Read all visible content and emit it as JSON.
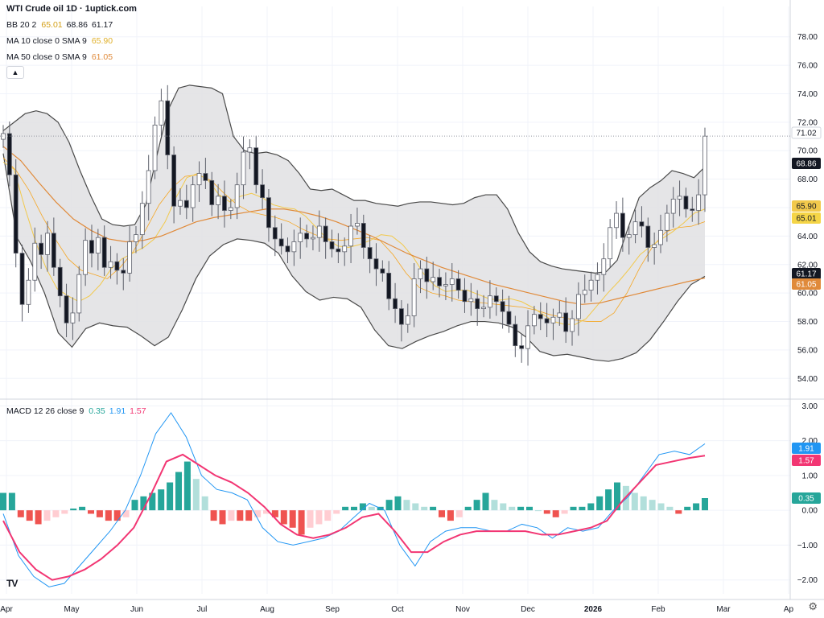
{
  "header": {
    "title": "WTI Crude oil  1D · 1uptick.com"
  },
  "legend": {
    "bb": {
      "label": "BB 20 2",
      "basis": "65.01",
      "upper": "68.86",
      "lower": "61.17"
    },
    "ma10": {
      "label": "MA 10 close 0 SMA 9",
      "value": "65.90"
    },
    "ma50": {
      "label": "MA 50 close 0 SMA 9",
      "value": "61.05"
    },
    "macd": {
      "label": "MACD 12 26 close 9",
      "hist": "0.35",
      "macd": "1.91",
      "signal": "1.57"
    }
  },
  "colors": {
    "up": "#26a69a",
    "down": "#131722",
    "bb_fill": "#e0e1e3",
    "bb_line": "#4a4a4a",
    "ma10": "#f2c94c",
    "ma50": "#e08a3a",
    "macd_line": "#2196f3",
    "signal_line": "#f23673",
    "hist_up": "#26a69a",
    "hist_up_light": "#b2dfdb",
    "hist_down": "#ef5350",
    "hist_down_light": "#ffcdd2"
  },
  "icons": {
    "collapse": "chevron-up-icon",
    "logo": "tradingview-logo-icon",
    "settings": "gear-icon"
  },
  "axis_labels": {
    "x": [
      "Apr",
      "May",
      "Jun",
      "Jul",
      "Aug",
      "Sep",
      "Oct",
      "Nov",
      "Dec",
      "2026",
      "Feb",
      "Mar",
      "Ap"
    ],
    "price": [
      "78.00",
      "76.00",
      "74.00",
      "72.00",
      "70.00",
      "68.00",
      "66.00",
      "64.00",
      "62.00",
      "60.00",
      "58.00",
      "56.00",
      "54.00"
    ],
    "macd": [
      "3.00",
      "2.00",
      "1.00",
      "0.00",
      "-1.00",
      "-2.00"
    ]
  },
  "badges": {
    "price": [
      {
        "value": "71.02",
        "bg": "#ffffff",
        "fg": "#131722"
      },
      {
        "value": "68.86",
        "bg": "#131722",
        "fg": "#ffffff"
      },
      {
        "value": "65.90",
        "bg": "#f2c94c",
        "fg": "#131722"
      },
      {
        "value": "65.01",
        "bg": "#f5d547",
        "fg": "#131722"
      },
      {
        "value": "61.17",
        "bg": "#131722",
        "fg": "#ffffff"
      },
      {
        "value": "61.05",
        "bg": "#e08a3a",
        "fg": "#ffffff"
      }
    ],
    "macd": [
      {
        "value": "1.91",
        "bg": "#2196f3",
        "fg": "#ffffff"
      },
      {
        "value": "1.57",
        "bg": "#f23673",
        "fg": "#ffffff"
      },
      {
        "value": "0.35",
        "bg": "#26a69a",
        "fg": "#ffffff"
      }
    ]
  },
  "chart_data": {
    "type": "line",
    "title": "WTI Crude oil  1D · 1uptick.com",
    "price_range": [
      53,
      79
    ],
    "macd_range": [
      -2.4,
      3.1
    ],
    "last_close": 71.02,
    "price_series": [
      {
        "name": "close",
        "values": [
          71.2,
          68.3,
          62.8,
          59.2,
          60.9,
          63.5,
          62.7,
          64.2,
          61.8,
          59.8,
          57.9,
          58.6,
          61.3,
          63.7,
          62.8,
          63.9,
          61.8,
          62.2,
          61.6,
          61.4,
          63.6,
          64.1,
          66.3,
          68.6,
          71.8,
          73.5,
          69.7,
          66.1,
          66.5,
          66.0,
          67.6,
          68.4,
          67.9,
          66.2,
          66.8,
          65.8,
          66.0,
          67.6,
          69.9,
          70.2,
          67.6,
          66.7,
          64.6,
          63.8,
          63.3,
          62.9,
          63.6,
          64.2,
          63.8,
          63.9,
          64.7,
          63.6,
          63.1,
          62.9,
          63.3,
          64.7,
          64.9,
          63.2,
          62.4,
          61.7,
          61.4,
          59.6,
          58.9,
          57.8,
          58.4,
          61.0,
          61.7,
          60.8,
          61.1,
          60.5,
          60.6,
          61.0,
          60.2,
          59.4,
          59.6,
          58.9,
          59.0,
          59.8,
          59.4,
          58.7,
          57.8,
          56.3,
          56.1,
          57.7,
          58.5,
          58.2,
          57.9,
          58.3,
          58.6,
          57.3,
          58.2,
          59.9,
          60.2,
          60.9,
          61.3,
          62.4,
          64.6,
          65.6,
          63.9,
          64.1,
          65.0,
          64.7,
          63.2,
          63.4,
          64.4,
          65.6,
          66.6,
          66.8,
          65.9,
          65.8,
          66.9,
          71.02
        ]
      },
      {
        "name": "bb_upper",
        "values": [
          71.4,
          72.0,
          72.6,
          72.8,
          72.6,
          72.0,
          70.6,
          68.6,
          66.8,
          65.2,
          64.8,
          64.7,
          64.8,
          66.2,
          69.6,
          72.8,
          74.4,
          74.6,
          74.5,
          74.4,
          74.0,
          71.0,
          70.0,
          69.8,
          69.9,
          69.7,
          69.3,
          68.4,
          67.3,
          67.2,
          67.3,
          66.9,
          66.5,
          66.5,
          66.3,
          66.2,
          66.1,
          66.3,
          66.4,
          66.4,
          66.3,
          66.2,
          66.3,
          66.7,
          66.9,
          66.9,
          65.9,
          64.2,
          62.9,
          62.2,
          61.9,
          61.7,
          61.6,
          61.5,
          61.4,
          61.5,
          62.3,
          64.6,
          66.7,
          67.4,
          67.9,
          68.6,
          68.4,
          68.1,
          68.86
        ]
      },
      {
        "name": "bb_basis",
        "values": [
          69.5,
          68.6,
          67.2,
          65.4,
          63.8,
          62.4,
          61.6,
          61.3,
          61.0,
          61.8,
          62.9,
          64.5,
          66.2,
          67.4,
          68.2,
          68.3,
          67.9,
          67.0,
          66.2,
          65.7,
          65.5,
          65.3,
          65.0,
          64.5,
          64.1,
          63.8,
          63.7,
          63.8,
          63.9,
          63.7,
          62.7,
          61.4,
          60.4,
          60.0,
          59.8,
          59.5,
          59.4,
          59.3,
          59.2,
          59.1,
          59.0,
          58.8,
          58.5,
          58.3,
          58.1,
          58.0,
          58.0,
          58.6,
          60.0,
          61.8,
          63.3,
          64.3,
          64.6,
          64.7,
          65.01
        ]
      },
      {
        "name": "bb_lower",
        "values": [
          69.8,
          63.9,
          62.2,
          60.0,
          57.2,
          56.2,
          57.5,
          57.9,
          57.7,
          57.6,
          57.0,
          56.3,
          56.9,
          58.8,
          61.0,
          62.6,
          63.4,
          63.8,
          63.7,
          63.5,
          62.8,
          61.2,
          60.1,
          59.5,
          59.7,
          59.6,
          59.0,
          57.4,
          56.3,
          56.1,
          56.6,
          57.0,
          57.3,
          57.7,
          58.0,
          58.0,
          57.9,
          57.6,
          56.9,
          55.9,
          55.6,
          55.7,
          55.5,
          55.3,
          55.2,
          55.4,
          55.8,
          56.7,
          58.0,
          59.4,
          60.6,
          61.17
        ]
      },
      {
        "name": "ma10",
        "values": [
          69.2,
          68.7,
          66.0,
          63.6,
          61.7,
          60.3,
          59.8,
          59.4,
          59.8,
          60.6,
          61.7,
          62.4,
          62.8,
          63.2,
          63.8,
          65.0,
          66.7,
          68.1,
          68.4,
          67.9,
          66.9,
          66.4,
          66.8,
          67.0,
          66.7,
          66.2,
          66.0,
          65.9,
          65.4,
          64.6,
          63.8,
          63.3,
          63.2,
          63.4,
          63.7,
          64.1,
          64.0,
          63.4,
          62.5,
          61.3,
          60.5,
          60.1,
          60.2,
          60.2,
          59.9,
          59.6,
          59.5,
          59.6,
          59.4,
          59.0,
          58.5,
          58.0,
          57.8,
          57.8,
          58.2,
          59.1,
          60.0,
          60.8,
          61.7,
          62.7,
          63.3,
          63.8,
          64.3,
          64.9,
          65.6,
          65.9
        ]
      },
      {
        "name": "ma50",
        "values": [
          70.3,
          69.3,
          67.8,
          66.4,
          65.2,
          64.4,
          63.8,
          63.6,
          63.7,
          64.0,
          64.5,
          65.0,
          65.3,
          65.5,
          65.7,
          65.9,
          65.9,
          65.7,
          65.4,
          65.0,
          64.5,
          64.0,
          63.4,
          62.8,
          62.3,
          61.8,
          61.4,
          61.0,
          60.6,
          60.3,
          60.0,
          59.7,
          59.4,
          59.2,
          59.3,
          59.6,
          59.9,
          60.2,
          60.5,
          60.8,
          61.05
        ]
      }
    ],
    "macd_series": [
      {
        "name": "macd",
        "values": [
          -0.1,
          -1.3,
          -1.9,
          -2.2,
          -2.1,
          -1.6,
          -1.1,
          -0.6,
          0.0,
          1.0,
          2.2,
          2.8,
          2.1,
          1.0,
          0.6,
          0.5,
          0.3,
          -0.5,
          -0.9,
          -1.0,
          -0.9,
          -0.8,
          -0.6,
          -0.2,
          0.2,
          0.0,
          -1.0,
          -1.6,
          -0.9,
          -0.6,
          -0.5,
          -0.5,
          -0.6,
          -0.6,
          -0.4,
          -0.5,
          -0.8,
          -0.5,
          -0.6,
          -0.5,
          0.0,
          0.4,
          1.0,
          1.6,
          1.7,
          1.6,
          1.91
        ]
      },
      {
        "name": "signal",
        "values": [
          -0.3,
          -1.2,
          -1.7,
          -2.0,
          -1.9,
          -1.7,
          -1.4,
          -1.0,
          -0.5,
          0.4,
          1.4,
          1.6,
          1.3,
          1.0,
          0.8,
          0.5,
          0.1,
          -0.4,
          -0.7,
          -0.8,
          -0.7,
          -0.5,
          -0.2,
          -0.1,
          -0.6,
          -1.2,
          -1.2,
          -0.9,
          -0.7,
          -0.6,
          -0.6,
          -0.6,
          -0.6,
          -0.7,
          -0.7,
          -0.6,
          -0.5,
          -0.3,
          0.3,
          0.8,
          1.3,
          1.4,
          1.5,
          1.57
        ]
      },
      {
        "name": "histogram",
        "values": [
          0.5,
          0.5,
          -0.2,
          -0.3,
          -0.4,
          -0.3,
          -0.2,
          -0.1,
          0.05,
          0.1,
          -0.1,
          -0.2,
          -0.3,
          -0.3,
          -0.2,
          0.3,
          0.4,
          0.5,
          0.6,
          0.8,
          1.1,
          1.4,
          0.9,
          0.4,
          -0.3,
          -0.4,
          -0.3,
          -0.3,
          -0.3,
          -0.2,
          -0.1,
          -0.2,
          -0.4,
          -0.5,
          -0.7,
          -0.5,
          -0.4,
          -0.3,
          -0.1,
          0.1,
          0.1,
          0.2,
          0.1,
          0.1,
          0.3,
          0.4,
          0.3,
          0.2,
          0.1,
          0.1,
          -0.2,
          -0.3,
          -0.2,
          0.1,
          0.3,
          0.5,
          0.3,
          0.2,
          0.1,
          0.1,
          0.1,
          0.0,
          -0.1,
          -0.2,
          -0.1,
          0.1,
          0.1,
          0.2,
          0.4,
          0.6,
          0.8,
          0.7,
          0.5,
          0.4,
          0.3,
          0.2,
          0.1,
          -0.1,
          0.1,
          0.2,
          0.35
        ]
      }
    ]
  }
}
